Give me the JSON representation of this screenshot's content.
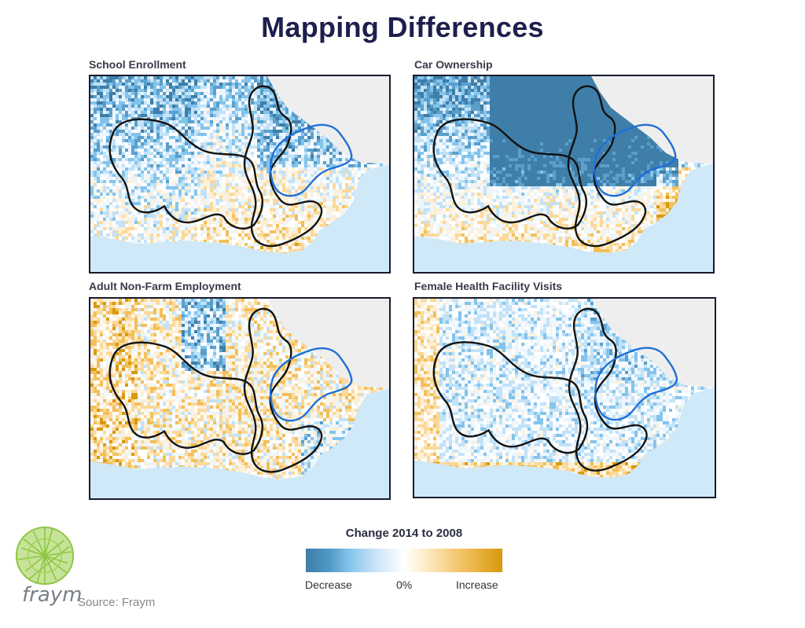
{
  "title": "Mapping Differences",
  "panels": [
    {
      "label": "School Enrollment",
      "pattern": "mixed"
    },
    {
      "label": "Car Ownership",
      "pattern": "blue-north"
    },
    {
      "label": "Adult Non-Farm Employment",
      "pattern": "orange-heavy"
    },
    {
      "label": "Female Health Facility Visits",
      "pattern": "light-mixed"
    }
  ],
  "legend": {
    "title": "Change 2014 to 2008",
    "decrease_label": "Decrease",
    "zero_label": "0%",
    "increase_label": "Increase"
  },
  "branding": {
    "logo_text": "fraym",
    "source": "Source: Fraym"
  },
  "colors": {
    "decrease_dark": "#3f7ea8",
    "decrease_light": "#83c4ec",
    "neutral": "#ffffff",
    "increase_light": "#f4c56a",
    "increase_dark": "#d9990c",
    "region_outline": "#111111",
    "highlight_outline": "#1f6fd6",
    "sea": "#cfe9f8",
    "land_outside": "#eeeeee"
  }
}
